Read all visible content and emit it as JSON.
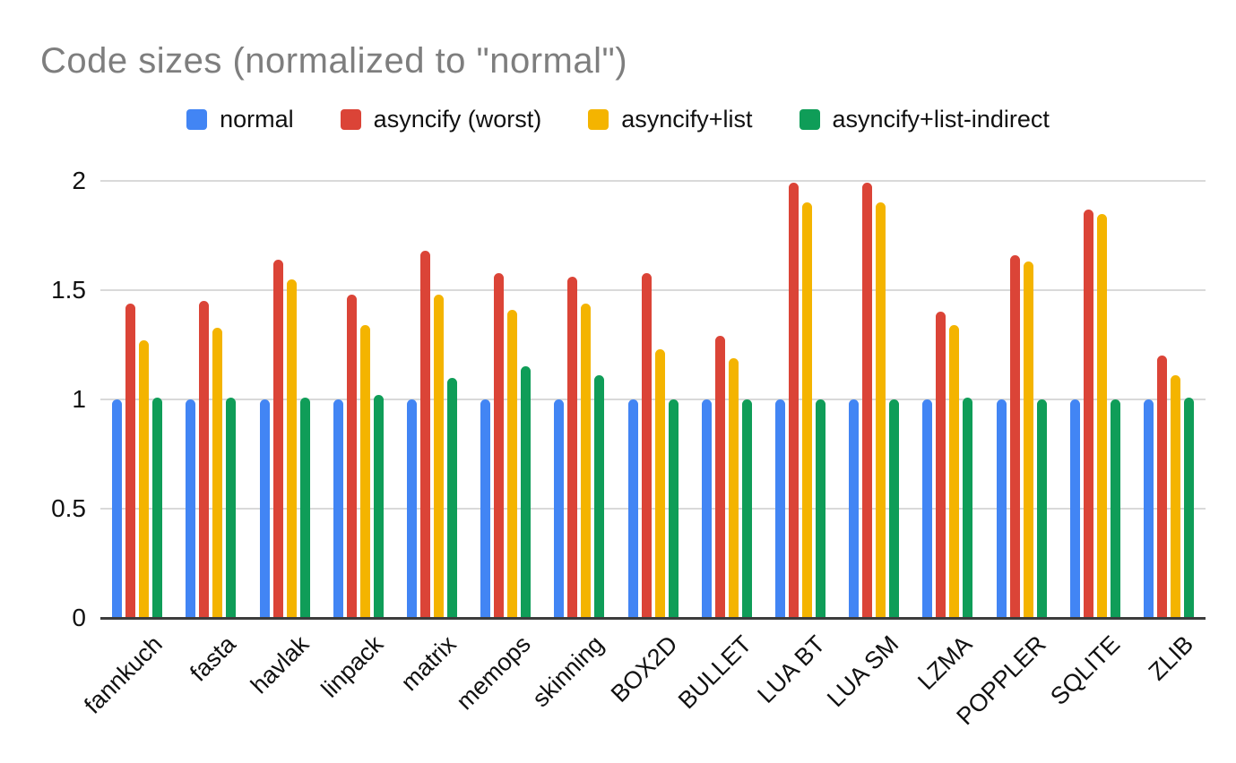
{
  "chart_data": {
    "type": "bar",
    "title": "Code sizes (normalized to \"normal\")",
    "categories": [
      "fannkuch",
      "fasta",
      "havlak",
      "linpack",
      "matrix",
      "memops",
      "skinning",
      "BOX2D",
      "BULLET",
      "LUA BT",
      "LUA SM",
      "LZMA",
      "POPPLER",
      "SQLITE",
      "ZLIB"
    ],
    "series": [
      {
        "name": "normal",
        "color": "#4285f4",
        "values": [
          1.0,
          1.0,
          1.0,
          1.0,
          1.0,
          1.0,
          1.0,
          1.0,
          1.0,
          1.0,
          1.0,
          1.0,
          1.0,
          1.0,
          1.0
        ]
      },
      {
        "name": "asyncify (worst)",
        "color": "#db4437",
        "values": [
          1.44,
          1.45,
          1.64,
          1.48,
          1.68,
          1.58,
          1.56,
          1.58,
          1.29,
          1.99,
          1.99,
          1.4,
          1.66,
          1.87,
          1.2
        ]
      },
      {
        "name": "asyncify+list",
        "color": "#f4b400",
        "values": [
          1.27,
          1.33,
          1.55,
          1.34,
          1.48,
          1.41,
          1.44,
          1.23,
          1.19,
          1.9,
          1.9,
          1.34,
          1.63,
          1.85,
          1.11
        ]
      },
      {
        "name": "asyncify+list-indirect",
        "color": "#0f9d58",
        "values": [
          1.01,
          1.01,
          1.01,
          1.02,
          1.1,
          1.15,
          1.11,
          1.0,
          1.0,
          1.0,
          1.0,
          1.01,
          1.0,
          1.0,
          1.01
        ]
      }
    ],
    "ylim": [
      0,
      2
    ],
    "yticks": [
      0,
      0.5,
      1,
      1.5,
      2
    ],
    "ytick_labels": [
      "0",
      "0.5",
      "1",
      "1.5",
      "2"
    ],
    "xlabel": "",
    "ylabel": "",
    "grid": true,
    "legend_position": "top",
    "colors": {
      "title_text": "#7e7e7e",
      "tick_text": "#111111",
      "gridline": "#d9d9d9",
      "axis_line": "#3c3c3c",
      "background": "#ffffff"
    }
  }
}
